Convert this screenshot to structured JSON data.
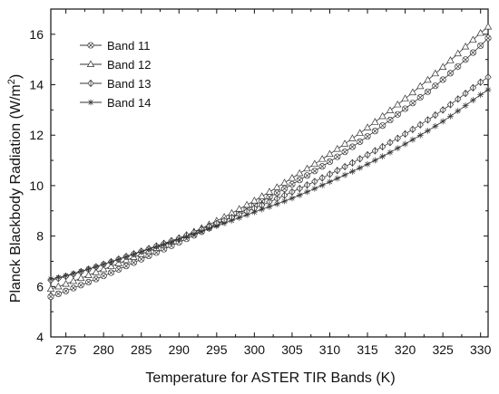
{
  "chart_data": {
    "type": "line",
    "title": "",
    "xlabel": "Temperature for ASTER TIR Bands (K)",
    "ylabel": "Planck Blackbody Radiation (W/m",
    "ylabel_sup": "2",
    "ylabel_close": ")",
    "xlim": [
      273,
      331
    ],
    "ylim": [
      4,
      17
    ],
    "xticks": [
      "275",
      "280",
      "285",
      "290",
      "295",
      "300",
      "305",
      "310",
      "315",
      "320",
      "325",
      "330"
    ],
    "yticks": [
      "4",
      "6",
      "8",
      "10",
      "12",
      "14",
      "16"
    ],
    "grid": false,
    "legend_position": "top-left",
    "x": [
      273,
      275,
      280,
      285,
      290,
      295,
      300,
      305,
      310,
      315,
      320,
      325,
      330,
      331
    ],
    "series": [
      {
        "name": "Band 11",
        "marker": "circle-x",
        "color": "#333333",
        "values": [
          5.6,
          5.82,
          6.42,
          7.08,
          7.75,
          8.46,
          9.22,
          10.05,
          10.95,
          11.95,
          13.05,
          14.2,
          15.55,
          15.85
        ]
      },
      {
        "name": "Band 12",
        "marker": "triangle",
        "color": "#333333",
        "values": [
          5.9,
          6.1,
          6.68,
          7.28,
          7.9,
          8.6,
          9.4,
          10.3,
          11.25,
          12.3,
          13.45,
          14.7,
          16.05,
          16.3
        ]
      },
      {
        "name": "Band 13",
        "marker": "diamond-bar",
        "color": "#333333",
        "values": [
          6.25,
          6.4,
          6.88,
          7.4,
          7.92,
          8.5,
          9.1,
          9.75,
          10.45,
          11.22,
          12.05,
          13.0,
          14.1,
          14.3
        ]
      },
      {
        "name": "Band 14",
        "marker": "star",
        "color": "#333333",
        "values": [
          6.3,
          6.43,
          6.88,
          7.38,
          7.88,
          8.4,
          8.95,
          9.5,
          10.15,
          10.85,
          11.65,
          12.55,
          13.6,
          13.8
        ]
      }
    ]
  }
}
